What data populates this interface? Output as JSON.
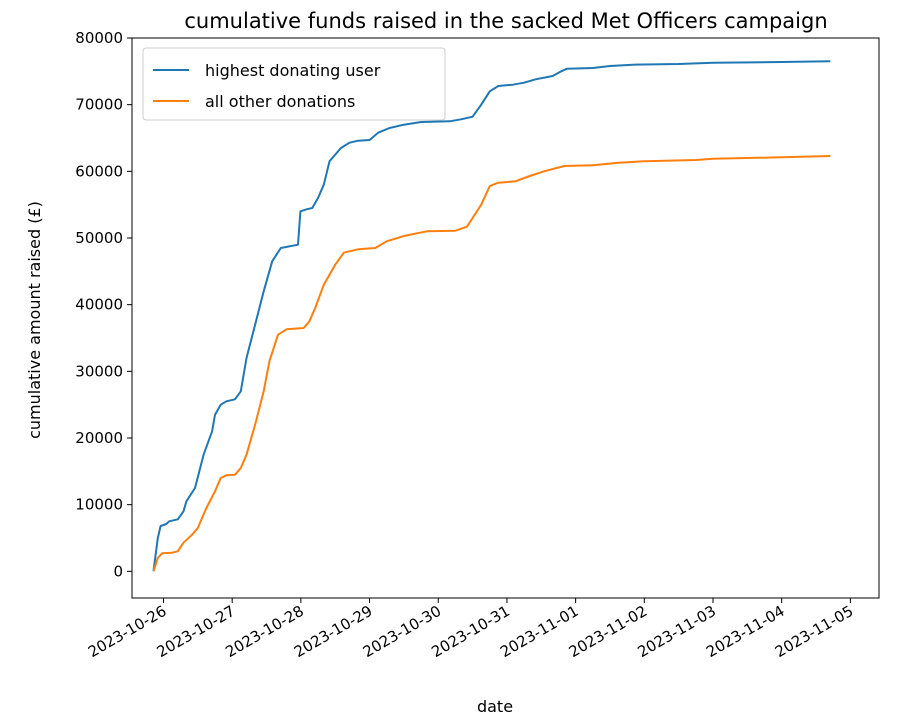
{
  "chart_data": {
    "type": "line",
    "title": "cumulative funds raised in the sacked Met Officers campaign",
    "xlabel": "date",
    "ylabel": "cumulative amount raised (£)",
    "ylim": [
      -4000,
      80000
    ],
    "xlim": [
      "2023-10-25T13:00",
      "2023-11-05T10:00"
    ],
    "yticks": [
      0,
      10000,
      20000,
      30000,
      40000,
      50000,
      60000,
      70000,
      80000
    ],
    "yticklabels": [
      "0",
      "10000",
      "20000",
      "30000",
      "40000",
      "50000",
      "60000",
      "70000",
      "80000"
    ],
    "xticks": [
      "2023-10-26",
      "2023-10-27",
      "2023-10-28",
      "2023-10-29",
      "2023-10-30",
      "2023-10-31",
      "2023-11-01",
      "2023-11-02",
      "2023-11-03",
      "2023-11-04",
      "2023-11-05"
    ],
    "grid": false,
    "legend": "upper left",
    "series": [
      {
        "name": "highest donating user",
        "color": "#1f77b4",
        "points": [
          [
            "2023-10-25T20:30",
            0
          ],
          [
            "2023-10-25T22:00",
            5000
          ],
          [
            "2023-10-25T23:00",
            6800
          ],
          [
            "2023-10-26T01:00",
            7100
          ],
          [
            "2023-10-26T02:00",
            7500
          ],
          [
            "2023-10-26T05:00",
            7800
          ],
          [
            "2023-10-26T07:00",
            9000
          ],
          [
            "2023-10-26T08:00",
            10500
          ],
          [
            "2023-10-26T11:00",
            12500
          ],
          [
            "2023-10-26T14:00",
            17500
          ],
          [
            "2023-10-26T17:00",
            21000
          ],
          [
            "2023-10-26T18:00",
            23500
          ],
          [
            "2023-10-26T20:00",
            25000
          ],
          [
            "2023-10-26T22:00",
            25500
          ],
          [
            "2023-10-27T01:00",
            25800
          ],
          [
            "2023-10-27T03:00",
            27000
          ],
          [
            "2023-10-27T05:00",
            32000
          ],
          [
            "2023-10-27T08:00",
            37000
          ],
          [
            "2023-10-27T11:00",
            42000
          ],
          [
            "2023-10-27T14:00",
            46500
          ],
          [
            "2023-10-27T17:00",
            48500
          ],
          [
            "2023-10-27T23:00",
            49000
          ],
          [
            "2023-10-27T23:50",
            54000
          ],
          [
            "2023-10-28T02:00",
            54300
          ],
          [
            "2023-10-28T04:00",
            54500
          ],
          [
            "2023-10-28T06:00",
            56000
          ],
          [
            "2023-10-28T08:00",
            58000
          ],
          [
            "2023-10-28T10:00",
            61500
          ],
          [
            "2023-10-28T14:00",
            63500
          ],
          [
            "2023-10-28T17:00",
            64300
          ],
          [
            "2023-10-28T20:00",
            64600
          ],
          [
            "2023-10-29T00:00",
            64700
          ],
          [
            "2023-10-29T03:00",
            65800
          ],
          [
            "2023-10-29T07:00",
            66500
          ],
          [
            "2023-10-29T12:00",
            67000
          ],
          [
            "2023-10-29T18:00",
            67400
          ],
          [
            "2023-10-30T04:00",
            67500
          ],
          [
            "2023-10-30T08:00",
            67800
          ],
          [
            "2023-10-30T12:00",
            68200
          ],
          [
            "2023-10-30T15:00",
            70000
          ],
          [
            "2023-10-30T18:00",
            72000
          ],
          [
            "2023-10-30T21:00",
            72800
          ],
          [
            "2023-10-31T02:00",
            73000
          ],
          [
            "2023-10-31T06:00",
            73300
          ],
          [
            "2023-10-31T10:00",
            73800
          ],
          [
            "2023-10-31T16:00",
            74300
          ],
          [
            "2023-10-31T19:00",
            75000
          ],
          [
            "2023-10-31T21:00",
            75400
          ],
          [
            "2023-11-01T06:00",
            75500
          ],
          [
            "2023-11-01T12:00",
            75800
          ],
          [
            "2023-11-01T20:00",
            76000
          ],
          [
            "2023-11-02T12:00",
            76100
          ],
          [
            "2023-11-03T00:00",
            76300
          ],
          [
            "2023-11-04T00:00",
            76400
          ],
          [
            "2023-11-04T17:00",
            76500
          ]
        ]
      },
      {
        "name": "all other donations",
        "color": "#ff7f0e",
        "points": [
          [
            "2023-10-25T20:30",
            0
          ],
          [
            "2023-10-25T22:00",
            2000
          ],
          [
            "2023-10-25T23:30",
            2700
          ],
          [
            "2023-10-26T03:00",
            2800
          ],
          [
            "2023-10-26T05:00",
            3000
          ],
          [
            "2023-10-26T07:00",
            4300
          ],
          [
            "2023-10-26T10:00",
            5500
          ],
          [
            "2023-10-26T12:00",
            6500
          ],
          [
            "2023-10-26T15:00",
            9500
          ],
          [
            "2023-10-26T18:00",
            12000
          ],
          [
            "2023-10-26T20:00",
            14000
          ],
          [
            "2023-10-26T22:00",
            14400
          ],
          [
            "2023-10-27T01:00",
            14500
          ],
          [
            "2023-10-27T03:00",
            15500
          ],
          [
            "2023-10-27T05:00",
            17500
          ],
          [
            "2023-10-27T08:00",
            22000
          ],
          [
            "2023-10-27T11:00",
            27000
          ],
          [
            "2023-10-27T13:00",
            31500
          ],
          [
            "2023-10-27T16:00",
            35500
          ],
          [
            "2023-10-27T19:00",
            36300
          ],
          [
            "2023-10-28T01:00",
            36500
          ],
          [
            "2023-10-28T03:00",
            37500
          ],
          [
            "2023-10-28T05:00",
            39500
          ],
          [
            "2023-10-28T08:00",
            43000
          ],
          [
            "2023-10-28T12:00",
            46000
          ],
          [
            "2023-10-28T15:00",
            47800
          ],
          [
            "2023-10-28T20:00",
            48300
          ],
          [
            "2023-10-29T02:00",
            48500
          ],
          [
            "2023-10-29T06:00",
            49500
          ],
          [
            "2023-10-29T12:00",
            50300
          ],
          [
            "2023-10-29T20:00",
            51000
          ],
          [
            "2023-10-30T06:00",
            51100
          ],
          [
            "2023-10-30T10:00",
            51700
          ],
          [
            "2023-10-30T12:00",
            53000
          ],
          [
            "2023-10-30T15:00",
            55000
          ],
          [
            "2023-10-30T18:00",
            57800
          ],
          [
            "2023-10-30T21:00",
            58300
          ],
          [
            "2023-10-31T03:00",
            58500
          ],
          [
            "2023-10-31T08:00",
            59300
          ],
          [
            "2023-10-31T13:00",
            60000
          ],
          [
            "2023-10-31T20:00",
            60800
          ],
          [
            "2023-11-01T06:00",
            60900
          ],
          [
            "2023-11-01T15:00",
            61300
          ],
          [
            "2023-11-02T00:00",
            61500
          ],
          [
            "2023-11-02T18:00",
            61700
          ],
          [
            "2023-11-03T00:00",
            61900
          ],
          [
            "2023-11-04T00:00",
            62100
          ],
          [
            "2023-11-04T17:00",
            62300
          ]
        ]
      }
    ]
  }
}
